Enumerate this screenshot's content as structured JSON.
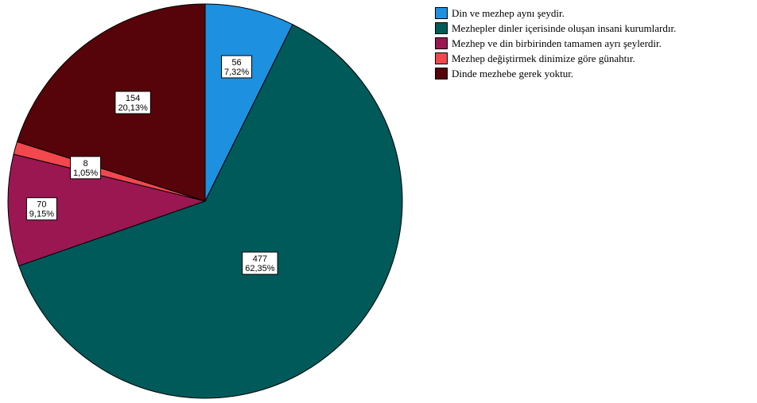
{
  "chart_data": {
    "type": "pie",
    "categories": [
      "Din ve mezhep aynı şeydir.",
      "Mezhepler dinler içerisinde oluşan insani kurumlardır.",
      "Mezhep ve din birbirinden tamamen ayrı şeylerdir.",
      "Mezhep değiştirmek dinimize göre günahtır.",
      "Dinde mezhebe gerek yoktur."
    ],
    "values": [
      56,
      477,
      70,
      8,
      154
    ],
    "percent_labels": [
      "7,32%",
      "62,35%",
      "9,15%",
      "1,05%",
      "20,13%"
    ],
    "colors": [
      "#1E90E0",
      "#005A5A",
      "#9B1751",
      "#F2474D",
      "#560409"
    ],
    "start": "12 o'clock",
    "direction": "clockwise",
    "legend_position": "top-right"
  }
}
